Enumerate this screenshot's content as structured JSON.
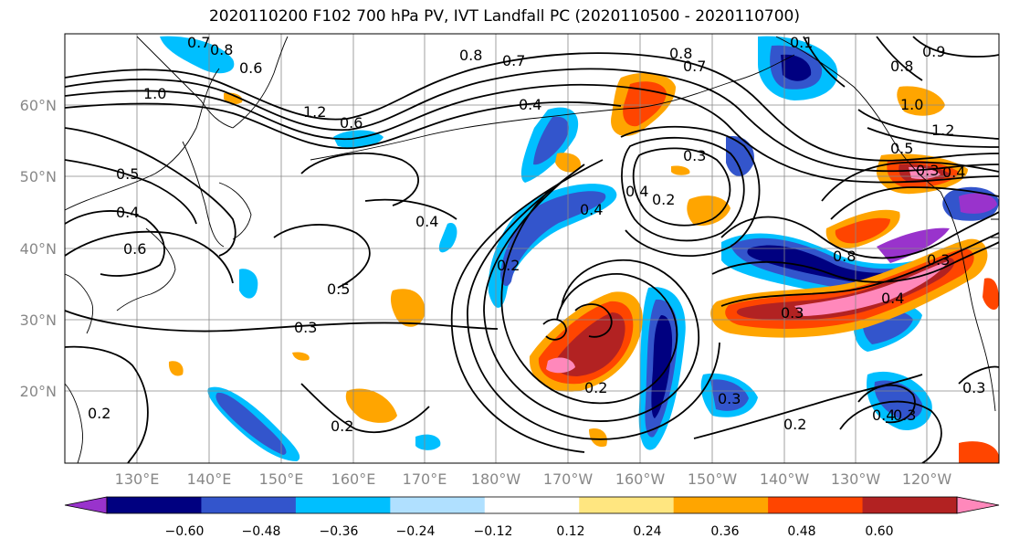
{
  "title": "2020110200 F102 700 hPa PV, IVT Landfall PC (2020110500 - 2020110700)",
  "lat_ticks": [
    "60°N",
    "50°N",
    "40°N",
    "30°N",
    "20°N"
  ],
  "lon_ticks": [
    "130°E",
    "140°E",
    "150°E",
    "160°E",
    "170°E",
    "180°W",
    "170°W",
    "160°W",
    "150°W",
    "140°W",
    "130°W",
    "120°W"
  ],
  "colorbar": {
    "tick_labels": [
      "−0.60",
      "−0.48",
      "−0.36",
      "−0.24",
      "−0.12",
      "0.12",
      "0.24",
      "0.36",
      "0.48",
      "0.60"
    ],
    "colors": [
      "#9933cc",
      "#000080",
      "#3355cc",
      "#00bfff",
      "#b0e0ff",
      "#ffffff",
      "#ffe680",
      "#ffa500",
      "#ff4500",
      "#b22222",
      "#ff88bb"
    ]
  },
  "contour_labels": [
    "0.7",
    "0.6",
    "0.8",
    "1.0",
    "1.2",
    "0.6",
    "0.5",
    "0.4",
    "0.6",
    "0.8",
    "0.7",
    "0.4",
    "0.8",
    "0.7",
    "0.3",
    "0.4",
    "0.2",
    "0.4",
    "0.5",
    "0.3",
    "0.2",
    "0.4",
    "0.2",
    "0.3",
    "0.2",
    "0.4",
    "0.3",
    "0.8",
    "0.4",
    "0.3",
    "0.3",
    "0.5",
    "0.3",
    "0.4",
    "1.2",
    "1.0",
    "0.9",
    "0.8",
    "0.3",
    "0.2",
    "0.2",
    "0.1"
  ]
}
